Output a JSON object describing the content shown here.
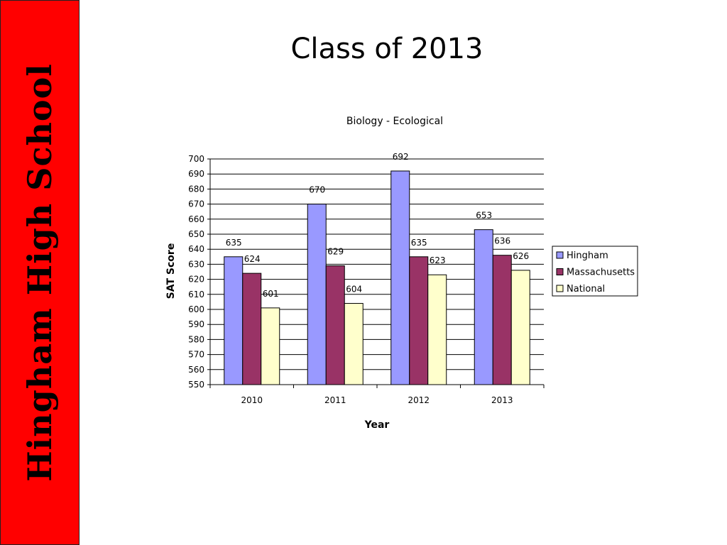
{
  "sidebar": {
    "text": "Hingham High School"
  },
  "slide": {
    "title": "Class of 2013"
  },
  "chart_data": {
    "type": "bar",
    "title": "Biology - Ecological",
    "xlabel": "Year",
    "ylabel": "SAT Score",
    "ylim": [
      550,
      700
    ],
    "ytick_step": 10,
    "grid": true,
    "legend": "right",
    "categories": [
      "2010",
      "2011",
      "2012",
      "2013"
    ],
    "series": [
      {
        "name": "Hingham",
        "color": "#9999ff",
        "values": [
          635,
          670,
          692,
          653
        ]
      },
      {
        "name": "Massachusetts",
        "color": "#993366",
        "values": [
          624,
          629,
          635,
          636
        ]
      },
      {
        "name": "National",
        "color": "#ffffcc",
        "values": [
          601,
          604,
          623,
          626
        ]
      }
    ]
  }
}
